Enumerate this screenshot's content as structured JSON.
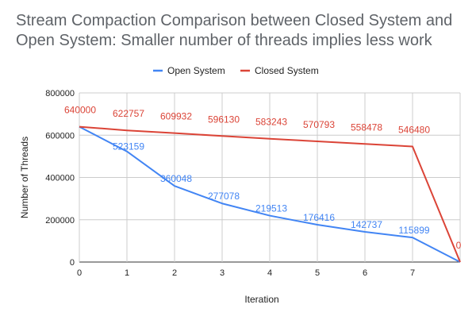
{
  "chart_data": {
    "type": "line",
    "title_lines": [
      "Stream Compaction Comparison between Closed System and",
      "Open System: Smaller number of threads implies less work"
    ],
    "xlabel": "Iteration",
    "ylabel": "Number of Threads",
    "x": [
      0,
      1,
      2,
      3,
      4,
      5,
      6,
      7,
      8
    ],
    "x_tick_labels": [
      "0",
      "1",
      "2",
      "3",
      "4",
      "5",
      "6",
      "7"
    ],
    "ylim": [
      0,
      800000
    ],
    "y_ticks": [
      0,
      200000,
      400000,
      600000,
      800000
    ],
    "y_tick_labels": [
      "0",
      "200000",
      "400000",
      "600000",
      "800000"
    ],
    "grid": true,
    "legend_position": "top",
    "series": [
      {
        "name": "Open System",
        "color": "#4285f4",
        "values": [
          640000,
          523159,
          360048,
          277078,
          219513,
          176416,
          142737,
          115899,
          0
        ],
        "data_labels": [
          "",
          "523159",
          "360048",
          "277078",
          "219513",
          "176416",
          "142737",
          "115899",
          ""
        ]
      },
      {
        "name": "Closed System",
        "color": "#db4437",
        "values": [
          640000,
          622757,
          609932,
          596130,
          583243,
          570793,
          558478,
          546480,
          0
        ],
        "data_labels": [
          "640000",
          "622757",
          "609932",
          "596130",
          "583243",
          "570793",
          "558478",
          "546480",
          "0"
        ]
      }
    ]
  }
}
